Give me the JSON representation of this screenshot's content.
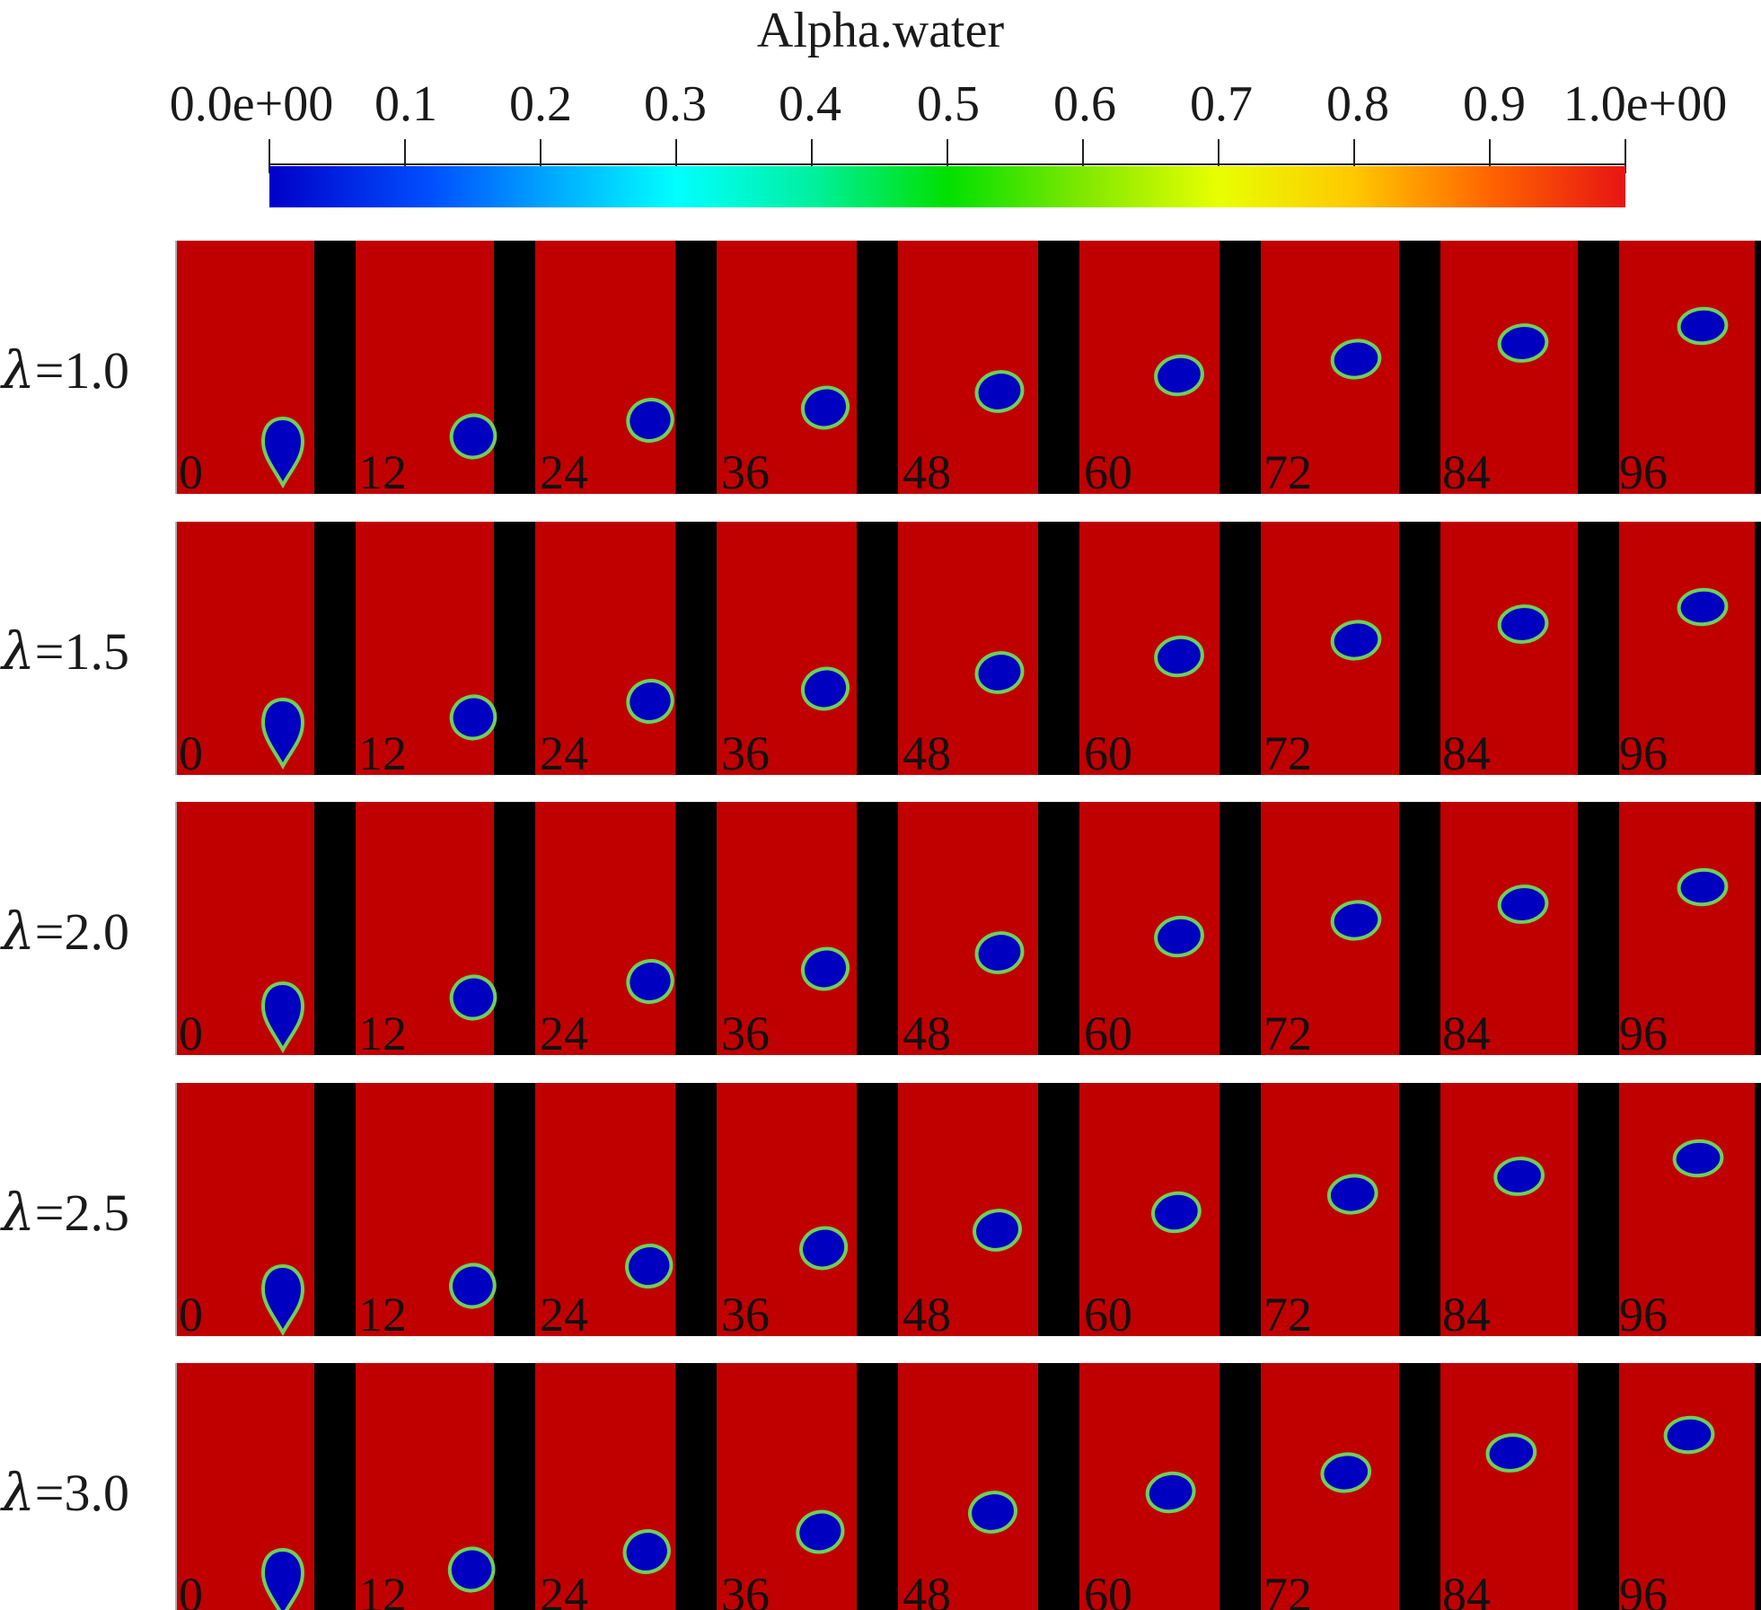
{
  "colorbar": {
    "title": "Alpha.water",
    "tick_labels": [
      "0.0e+00",
      "0.1",
      "0.2",
      "0.3",
      "0.4",
      "0.5",
      "0.6",
      "0.7",
      "0.8",
      "0.9",
      "1.0e+00"
    ],
    "range": [
      0,
      1
    ],
    "colors": {
      "water": "#c00000",
      "air": "#0000c0",
      "interface": "#6fcf5a",
      "wall": "#000000"
    }
  },
  "frames": [
    "0",
    "12",
    "24",
    "36",
    "48",
    "60",
    "72",
    "84",
    "96"
  ],
  "rows": [
    {
      "symbol": "λ",
      "eq": "=",
      "value": "1.0"
    },
    {
      "symbol": "λ",
      "eq": "=",
      "value": "1.5"
    },
    {
      "symbol": "λ",
      "eq": "=",
      "value": "2.0"
    },
    {
      "symbol": "λ",
      "eq": "=",
      "value": "2.5"
    },
    {
      "symbol": "λ",
      "eq": "=",
      "value": "3.0"
    }
  ]
}
